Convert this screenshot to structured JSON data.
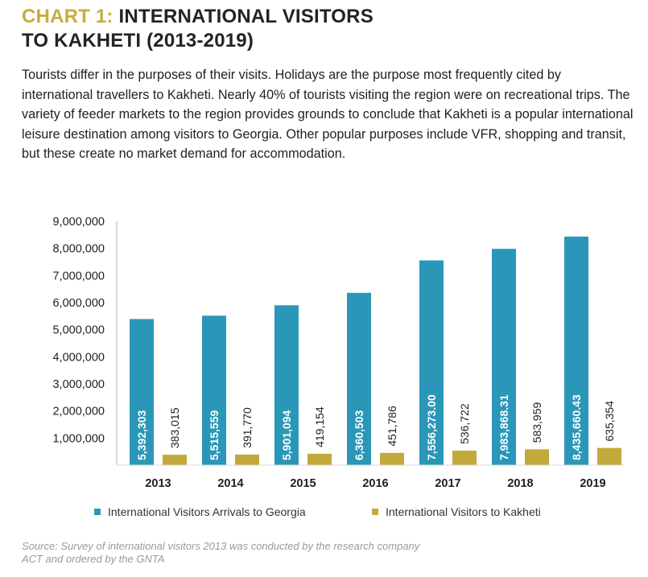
{
  "heading": {
    "prefix": "CHART 1:",
    "line1": "INTERNATIONAL VISITORS",
    "line2": "TO KAKHETI (2013-2019)"
  },
  "intro": "Tourists differ in the purposes of their visits. Holidays are the purpose most frequently cited by international travellers to Kakheti. Nearly 40% of tourists visiting the region were on recreational trips. The variety of feeder markets to the region provides grounds to conclude that Kakheti is a popular international leisure destination among visitors to Georgia. Other popular purposes include VFR, shopping and transit, but these create no market demand for accommodation.",
  "source": "Source: Survey of international visitors 2013 was conducted by the research company ACT and ordered by the GNTA",
  "chart_data": {
    "type": "bar",
    "categories": [
      "2013",
      "2014",
      "2015",
      "2016",
      "2017",
      "2018",
      "2019"
    ],
    "ylim": [
      0,
      9000000
    ],
    "y_ticks": [
      "1,000,000",
      "2,000,000",
      "3,000,000",
      "4,000,000",
      "5,000,000",
      "6,000,000",
      "7,000,000",
      "8,000,000",
      "9,000,000"
    ],
    "y_tick_values": [
      1000000,
      2000000,
      3000000,
      4000000,
      5000000,
      6000000,
      7000000,
      8000000,
      9000000
    ],
    "grid": false,
    "legend_position": "bottom",
    "series": [
      {
        "name": "International Visitors Arrivals to Georgia",
        "color": "#2a97b8",
        "values": [
          5392303,
          5515559,
          5901094,
          6360503,
          7556273,
          7983868.31,
          8435660.43
        ],
        "labels": [
          "5,392,303",
          "5,515,559",
          "5,901,094",
          "6,360,503",
          "7,556,273.00",
          "7,983,868.31",
          "8,435,660.43"
        ]
      },
      {
        "name": "International Visitors to Kakheti",
        "color": "#c2a93c",
        "values": [
          383015,
          391770,
          419154,
          451786,
          536722,
          583959,
          635354
        ],
        "labels": [
          "383,015",
          "391,770",
          "419,154",
          "451,786",
          "536,722",
          "583,959",
          "635,354"
        ]
      }
    ]
  }
}
